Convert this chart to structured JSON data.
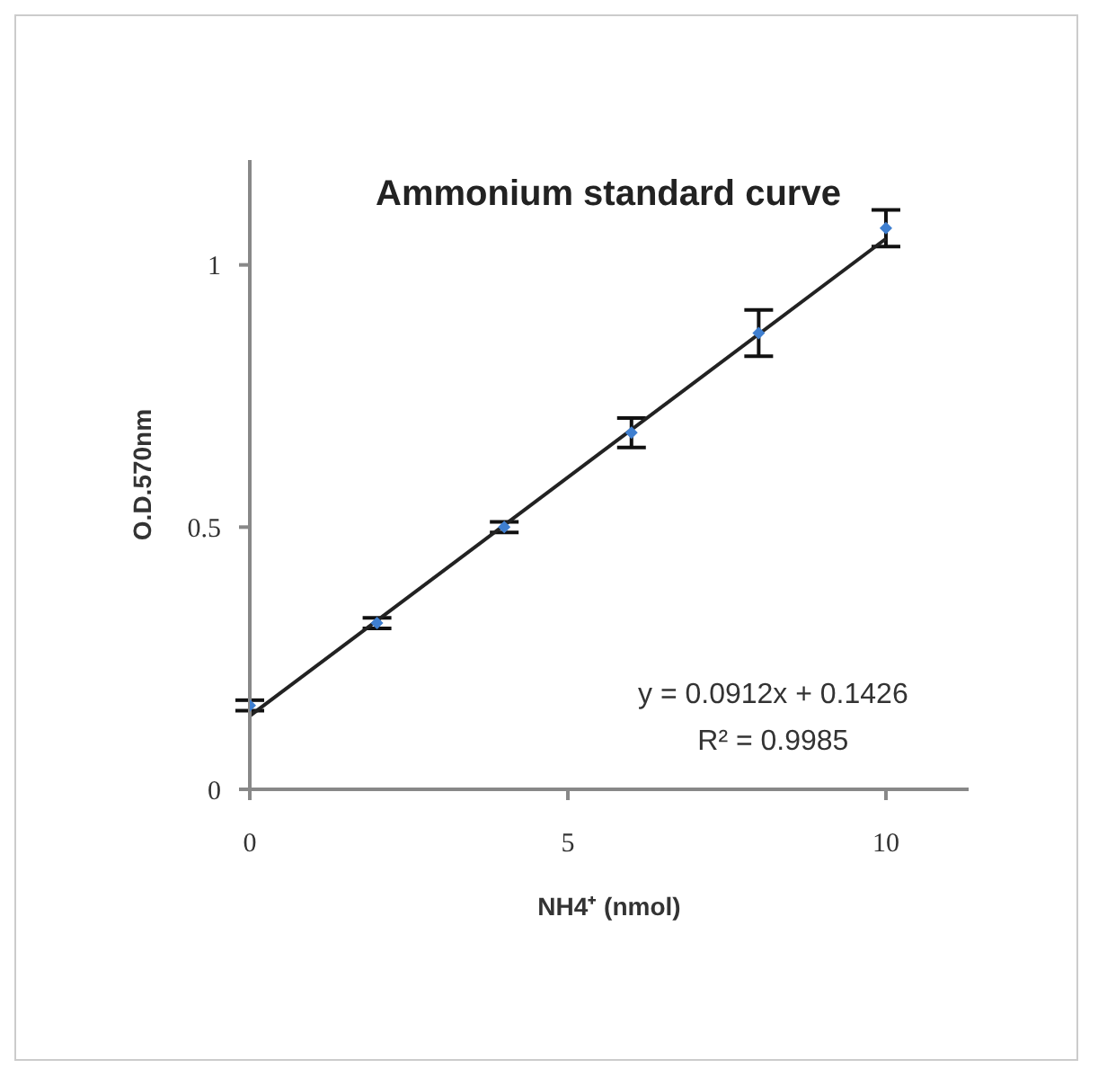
{
  "chart_data": {
    "type": "scatter",
    "title": "Ammonium standard curve",
    "xlabel": "NH4⁺ (nmol)",
    "ylabel": "O.D.570nm",
    "annotations": [
      "y = 0.0912x + 0.1426",
      "R² = 0.9985"
    ],
    "x": [
      0,
      2,
      4,
      6,
      8,
      10
    ],
    "series": [
      {
        "marker": "diamond",
        "color": "#3f7fd0",
        "values": [
          0.16,
          0.317,
          0.5,
          0.68,
          0.87,
          1.07
        ],
        "errors": [
          0.01,
          0.01,
          0.01,
          0.028,
          0.044,
          0.035
        ]
      },
      {
        "type": "line",
        "marker": "none",
        "color": "#222222",
        "x": [
          0,
          10
        ],
        "values": [
          0.14,
          1.05
        ]
      }
    ],
    "xlim": [
      0,
      11.3
    ],
    "xticks": [
      0,
      5,
      10
    ],
    "ylim": [
      0,
      1.2
    ],
    "yticks": [
      0,
      0.5,
      1
    ],
    "grid": false,
    "legend": false,
    "line_style": "solid"
  }
}
